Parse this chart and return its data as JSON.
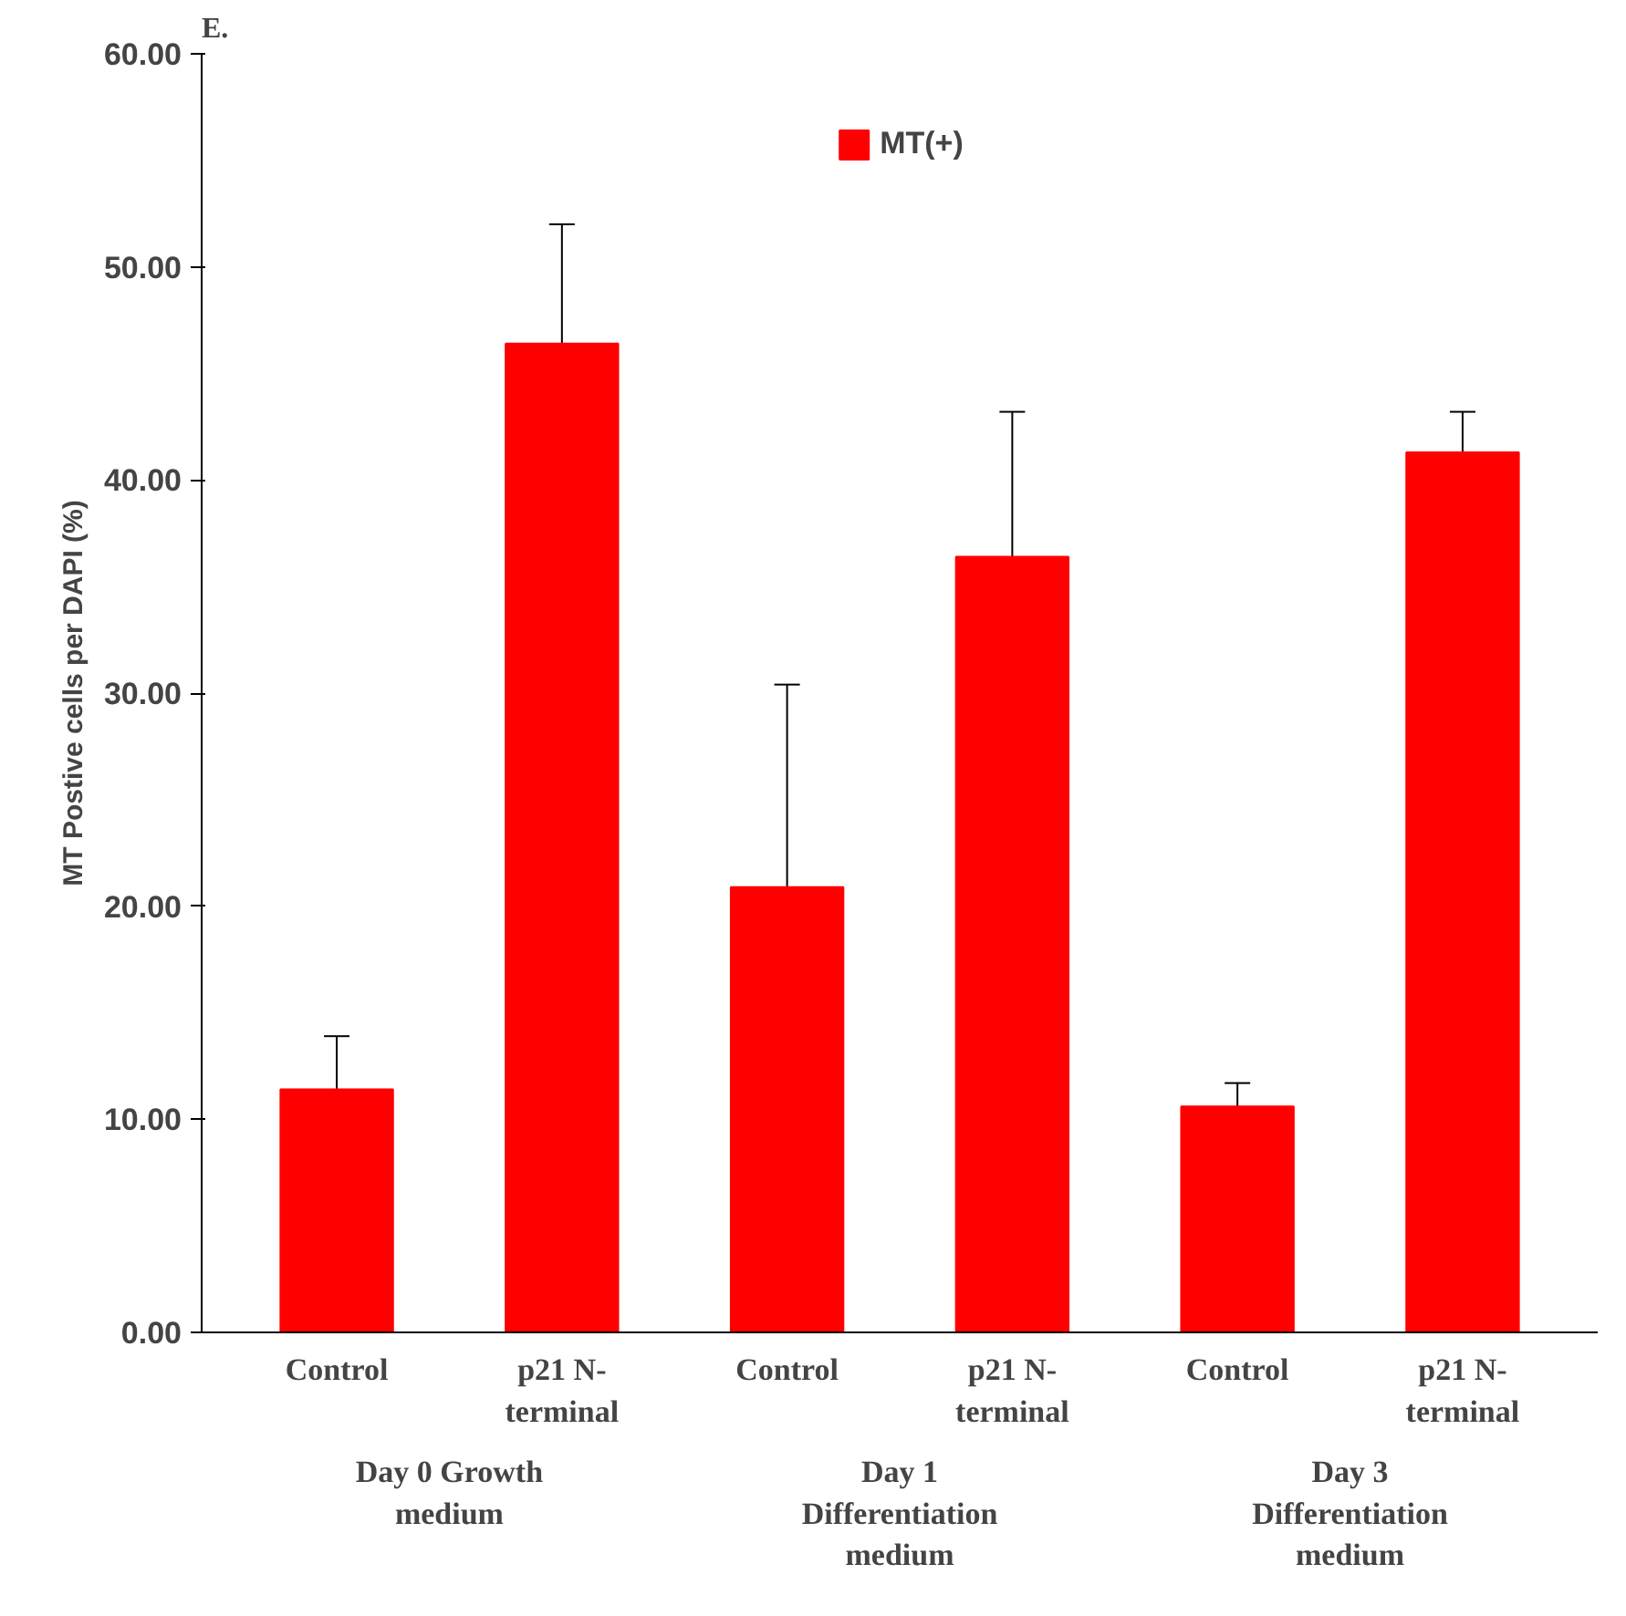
{
  "chart_data": {
    "type": "bar",
    "title": "E.",
    "ylabel": "MT Postive cells per DAPI (%)",
    "categories": [
      "Control",
      "p21 N-terminal",
      "Control",
      "p21 N-terminal",
      "Control",
      "p21 N-terminal"
    ],
    "series": [
      {
        "name": "MT(+)",
        "color": "#ff0000",
        "values": [
          11.4,
          46.4,
          20.9,
          36.4,
          10.6,
          41.3
        ],
        "errors": [
          [
            11.4,
            13.9
          ],
          [
            46.4,
            52.0
          ],
          [
            20.9,
            30.4
          ],
          [
            36.4,
            43.2
          ],
          [
            10.6,
            11.7
          ],
          [
            41.3,
            43.2
          ]
        ]
      }
    ],
    "ylim": [
      0,
      60
    ],
    "yticks": [
      {
        "value": 0,
        "label": "0.00"
      },
      {
        "value": 10,
        "label": "10.00"
      },
      {
        "value": 20,
        "label": "20.00"
      },
      {
        "value": 30,
        "label": "30.00"
      },
      {
        "value": 40,
        "label": "40.00"
      },
      {
        "value": 50,
        "label": "50.00"
      },
      {
        "value": 60,
        "label": "60.00"
      }
    ],
    "annotations": [
      "Day 0 Growth medium",
      "Day 1 Differentiation medium",
      "Day 3 Differentiation medium"
    ],
    "grid": false,
    "legend": "top"
  }
}
